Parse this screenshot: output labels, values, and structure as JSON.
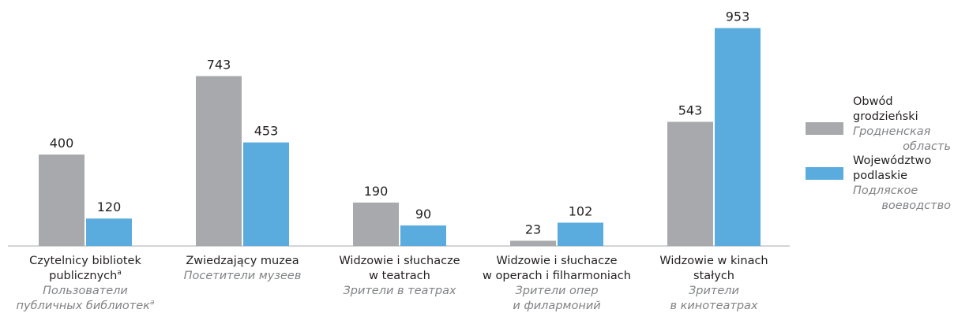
{
  "chart_data": {
    "type": "bar",
    "categories": [
      {
        "pl": [
          "Czytelnicy bibliotek",
          "publicznych"
        ],
        "pl_note": "a",
        "ru": [
          "Пользователи",
          "публичных библиотек"
        ],
        "ru_note": "a"
      },
      {
        "pl": [
          "Zwiedzający muzea"
        ],
        "ru": [
          "Посетители музеев"
        ]
      },
      {
        "pl": [
          "Widzowie i słuchacze",
          "w teatrach"
        ],
        "ru": [
          "Зрители в театрах"
        ]
      },
      {
        "pl": [
          "Widzowie i słuchacze",
          "w operach i filharmoniach"
        ],
        "ru": [
          "Зрители опер",
          "и филармоний"
        ]
      },
      {
        "pl": [
          "Widzowie w kinach",
          "stałych"
        ],
        "ru": [
          "Зрители",
          "в кинотеатрах"
        ]
      }
    ],
    "series": [
      {
        "name": "Obwód grodzieński",
        "name_ru": "Гродненская область",
        "color": "#a7a9ac",
        "values": [
          400,
          743,
          190,
          23,
          543
        ]
      },
      {
        "name": "Województwo podlaskie",
        "name_ru": "Подляское воеводство",
        "color": "#5aabde",
        "values": [
          120,
          453,
          90,
          102,
          953
        ]
      }
    ],
    "ylim": [
      0,
      1000
    ]
  }
}
